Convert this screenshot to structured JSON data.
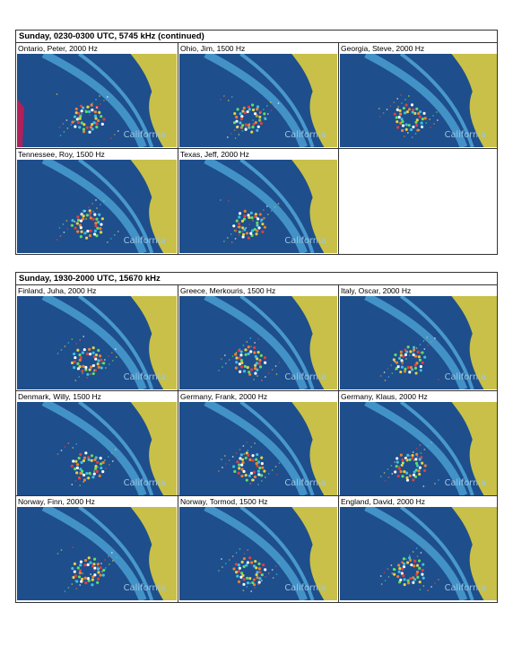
{
  "image_label": "California",
  "sections": [
    {
      "title": "Sunday, 0230-0300 UTC, 5745 kHz (continued)",
      "cells": [
        "Ontario, Peter, 2000 Hz",
        "Ohio, Jim, 1500 Hz",
        "Georgia, Steve, 2000 Hz",
        "Tennessee, Roy, 1500 Hz",
        "Texas, Jeff, 2000 Hz"
      ]
    },
    {
      "title": "Sunday, 1930-2000 UTC, 15670 kHz",
      "cells": [
        "Finland, Juha, 2000 Hz",
        "Greece, Merkouris, 1500 Hz",
        "Italy, Oscar, 2000 Hz",
        "Denmark, Willy, 1500 Hz",
        "Germany, Frank, 2000 Hz",
        "Germany, Klaus, 2000 Hz",
        "Norway, Finn, 2000 Hz",
        "Norway, Tormod, 1500 Hz",
        "England, David, 2000 Hz"
      ]
    }
  ]
}
